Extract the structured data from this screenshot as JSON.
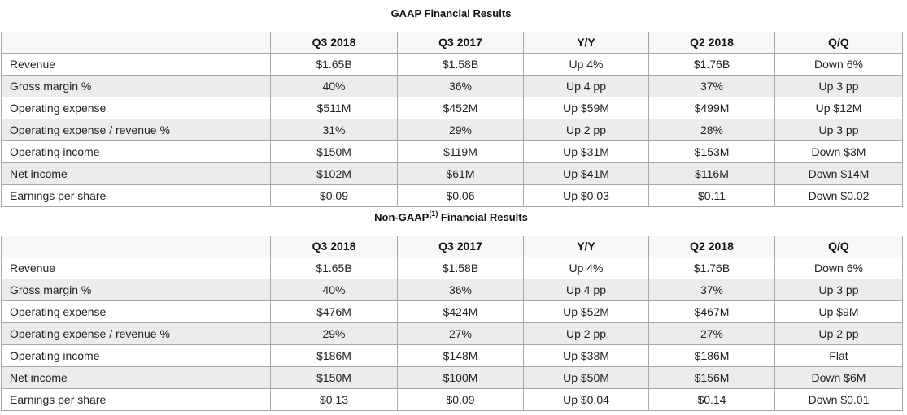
{
  "gaap": {
    "title": "GAAP Financial Results",
    "columns": [
      "Q3 2018",
      "Q3 2017",
      "Y/Y",
      "Q2 2018",
      "Q/Q"
    ],
    "rows": [
      {
        "label": "Revenue",
        "values": [
          "$1.65B",
          "$1.58B",
          "Up 4%",
          "$1.76B",
          "Down 6%"
        ]
      },
      {
        "label": "Gross margin %",
        "values": [
          "40%",
          "36%",
          "Up 4 pp",
          "37%",
          "Up 3 pp"
        ]
      },
      {
        "label": "Operating expense",
        "values": [
          "$511M",
          "$452M",
          "Up $59M",
          "$499M",
          "Up $12M"
        ]
      },
      {
        "label": "Operating expense / revenue %",
        "values": [
          "31%",
          "29%",
          "Up 2 pp",
          "28%",
          "Up 3 pp"
        ]
      },
      {
        "label": "Operating income",
        "values": [
          "$150M",
          "$119M",
          "Up $31M",
          "$153M",
          "Down $3M"
        ]
      },
      {
        "label": "Net income",
        "values": [
          "$102M",
          "$61M",
          "Up $41M",
          "$116M",
          "Down $14M"
        ]
      },
      {
        "label": "Earnings per share",
        "values": [
          "$0.09",
          "$0.06",
          "Up $0.03",
          "$0.11",
          "Down $0.02"
        ]
      }
    ]
  },
  "nongaap": {
    "title_prefix": "Non-GAAP",
    "title_footnote": "(1)",
    "title_suffix": " Financial Results",
    "columns": [
      "Q3 2018",
      "Q3 2017",
      "Y/Y",
      "Q2 2018",
      "Q/Q"
    ],
    "rows": [
      {
        "label": "Revenue",
        "values": [
          "$1.65B",
          "$1.58B",
          "Up 4%",
          "$1.76B",
          "Down 6%"
        ]
      },
      {
        "label": "Gross margin %",
        "values": [
          "40%",
          "36%",
          "Up 4 pp",
          "37%",
          "Up 3 pp"
        ]
      },
      {
        "label": "Operating expense",
        "values": [
          "$476M",
          "$424M",
          "Up $52M",
          "$467M",
          "Up $9M"
        ]
      },
      {
        "label": "Operating expense / revenue %",
        "values": [
          "29%",
          "27%",
          "Up 2 pp",
          "27%",
          "Up 2 pp"
        ]
      },
      {
        "label": "Operating income",
        "values": [
          "$186M",
          "$148M",
          "Up $38M",
          "$186M",
          "Flat"
        ]
      },
      {
        "label": "Net income",
        "values": [
          "$150M",
          "$100M",
          "Up $50M",
          "$156M",
          "Down $6M"
        ]
      },
      {
        "label": "Earnings per share",
        "values": [
          "$0.13",
          "$0.09",
          "Up $0.04",
          "$0.14",
          "Down $0.01"
        ]
      }
    ]
  }
}
